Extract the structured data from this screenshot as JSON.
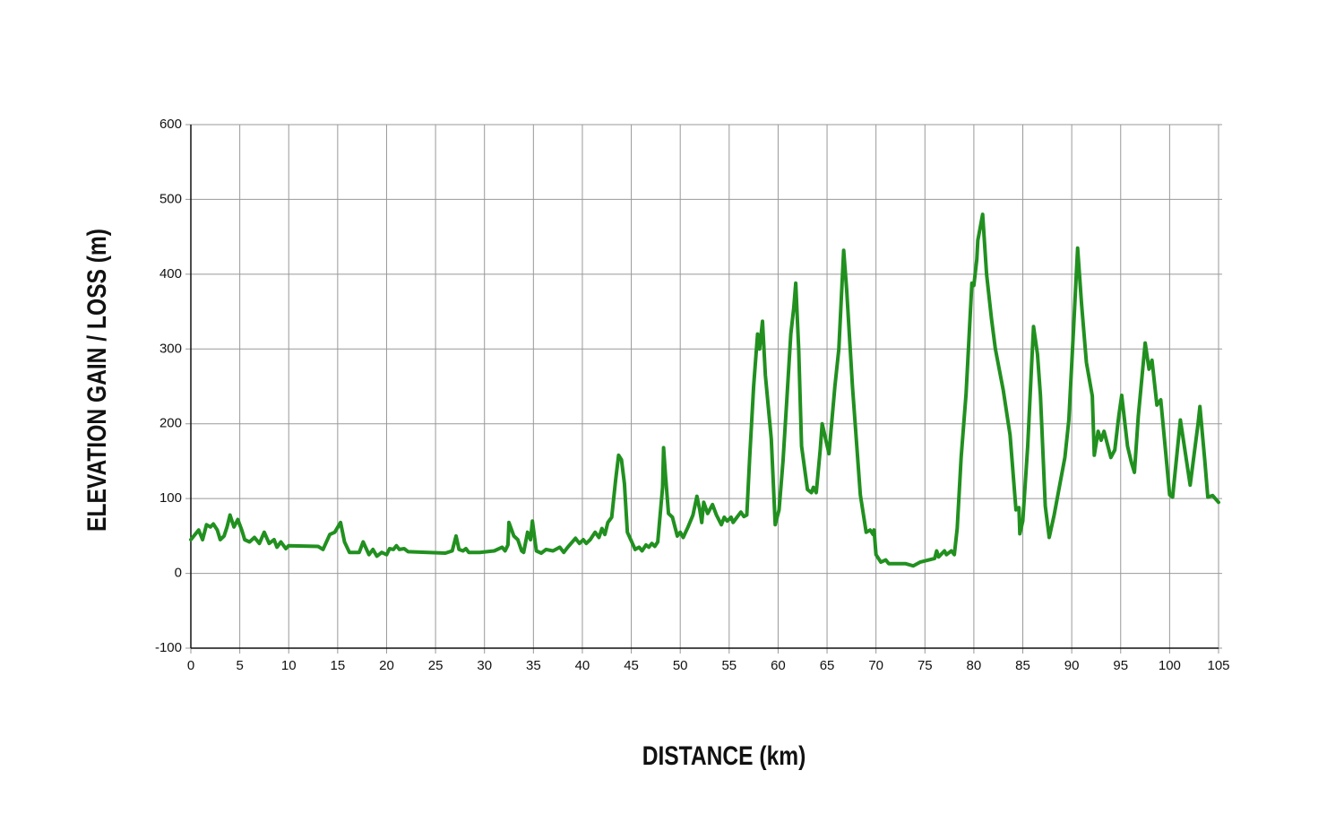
{
  "chart_data": {
    "type": "line",
    "ylabel": "ELEVATION GAIN / LOSS (m)",
    "xlabel": "DISTANCE (km)",
    "color": "#21901f",
    "grid": true,
    "xlim": [
      0,
      105
    ],
    "xticks": [
      0,
      5,
      10,
      15,
      20,
      25,
      30,
      35,
      40,
      45,
      50,
      55,
      60,
      65,
      70,
      75,
      80,
      85,
      90,
      95,
      100,
      105
    ],
    "ylim": [
      -100,
      600
    ],
    "yticks": [
      -100,
      0,
      100,
      200,
      300,
      400,
      500,
      600
    ],
    "x": [
      0,
      0.8,
      1.2,
      1.6,
      2,
      2.3,
      2.7,
      3,
      3.4,
      3.7,
      4,
      4.4,
      4.8,
      5.2,
      5.5,
      6,
      6.5,
      7,
      7.5,
      8,
      8.5,
      8.8,
      9.2,
      9.7,
      10,
      13,
      13.5,
      14.2,
      14.7,
      15.3,
      15.7,
      16.2,
      17.2,
      17.6,
      18.2,
      18.6,
      19,
      19.5,
      20,
      20.3,
      20.7,
      21,
      21.3,
      21.8,
      22.2,
      26,
      26.7,
      27.1,
      27.4,
      27.8,
      28.1,
      28.4,
      29.5,
      31,
      31.8,
      32.1,
      32.4,
      32.5,
      33,
      33.4,
      33.8,
      34,
      34.4,
      34.7,
      34.9,
      35.3,
      35.8,
      36.3,
      37,
      37.7,
      38.1,
      38.5,
      39.3,
      39.7,
      40.1,
      40.4,
      40.8,
      41.3,
      41.7,
      42,
      42.3,
      42.6,
      43,
      43.4,
      43.7,
      44,
      44.3,
      44.6,
      45.4,
      45.8,
      46.1,
      46.5,
      46.8,
      47.1,
      47.4,
      47.7,
      48.2,
      48.3,
      48.5,
      48.8,
      49.2,
      49.7,
      50,
      50.3,
      50.8,
      51.3,
      51.7,
      52,
      52.2,
      52.4,
      52.8,
      53.3,
      53.7,
      54.2,
      54.5,
      54.8,
      55.2,
      55.4,
      55.8,
      56.2,
      56.5,
      56.8,
      57.1,
      57.5,
      57.9,
      58.1,
      58.4,
      58.7,
      59.3,
      59.7,
      60.1,
      60.5,
      60.9,
      61.3,
      61.6,
      61.8,
      62.1,
      62.4,
      63,
      63.4,
      63.6,
      63.9,
      64.3,
      64.5,
      65.2,
      65.8,
      66.2,
      66.7,
      67,
      67.6,
      68.4,
      69,
      69.4,
      69.7,
      69.8,
      70,
      70.5,
      71,
      71.3,
      73,
      73.8,
      74.5,
      76,
      76.2,
      76.4,
      77,
      77.2,
      77.7,
      78,
      78.3,
      78.7,
      79.2,
      79.8,
      80,
      80.3,
      80.4,
      80.9,
      81.3,
      81.8,
      82.2,
      83,
      83.7,
      84.3,
      84.6,
      84.7,
      85,
      85.5,
      85.9,
      86.1,
      86.5,
      86.8,
      87.3,
      87.7,
      88.2,
      88.8,
      89.3,
      89.7,
      90.2,
      90.6,
      91,
      91.5,
      92.1,
      92.3,
      92.7,
      93,
      93.3,
      94,
      94.4,
      94.8,
      95.1,
      95.7,
      96.1,
      96.4,
      96.8,
      97.5,
      97.9,
      98.2,
      98.7,
      99.1,
      100,
      100.3,
      101.1,
      102.1,
      102.9,
      103.1,
      103.6,
      103.9,
      104.4,
      105
    ],
    "values": [
      45,
      58,
      45,
      65,
      62,
      66,
      58,
      45,
      50,
      62,
      78,
      62,
      72,
      58,
      45,
      42,
      48,
      40,
      55,
      40,
      45,
      35,
      42,
      33,
      37,
      36,
      32,
      52,
      55,
      68,
      42,
      28,
      28,
      42,
      25,
      32,
      23,
      28,
      25,
      33,
      32,
      37,
      32,
      33,
      29,
      27,
      30,
      50,
      32,
      30,
      33,
      28,
      28,
      30,
      35,
      30,
      38,
      68,
      50,
      45,
      30,
      28,
      55,
      45,
      70,
      30,
      27,
      32,
      30,
      35,
      28,
      35,
      47,
      40,
      45,
      40,
      45,
      55,
      48,
      60,
      52,
      68,
      75,
      125,
      158,
      152,
      120,
      55,
      32,
      35,
      30,
      38,
      35,
      40,
      36,
      42,
      115,
      168,
      130,
      80,
      75,
      50,
      55,
      48,
      62,
      78,
      103,
      85,
      68,
      95,
      80,
      92,
      78,
      65,
      75,
      70,
      75,
      68,
      75,
      82,
      76,
      78,
      155,
      250,
      320,
      300,
      337,
      265,
      180,
      65,
      85,
      150,
      235,
      320,
      355,
      388,
      300,
      170,
      112,
      108,
      115,
      108,
      165,
      200,
      160,
      250,
      300,
      432,
      380,
      250,
      105,
      55,
      58,
      52,
      58,
      25,
      15,
      18,
      13,
      13,
      10,
      15,
      20,
      30,
      22,
      30,
      25,
      30,
      25,
      60,
      155,
      240,
      388,
      385,
      420,
      445,
      480,
      400,
      340,
      300,
      245,
      185,
      85,
      88,
      53,
      70,
      170,
      280,
      330,
      293,
      238,
      90,
      48,
      78,
      120,
      155,
      205,
      330,
      435,
      360,
      282,
      237,
      158,
      190,
      178,
      190,
      155,
      165,
      210,
      238,
      170,
      148,
      135,
      210,
      308,
      273,
      285,
      225,
      232,
      105,
      102,
      205,
      118,
      200,
      223,
      150,
      102,
      104,
      95
    ]
  }
}
